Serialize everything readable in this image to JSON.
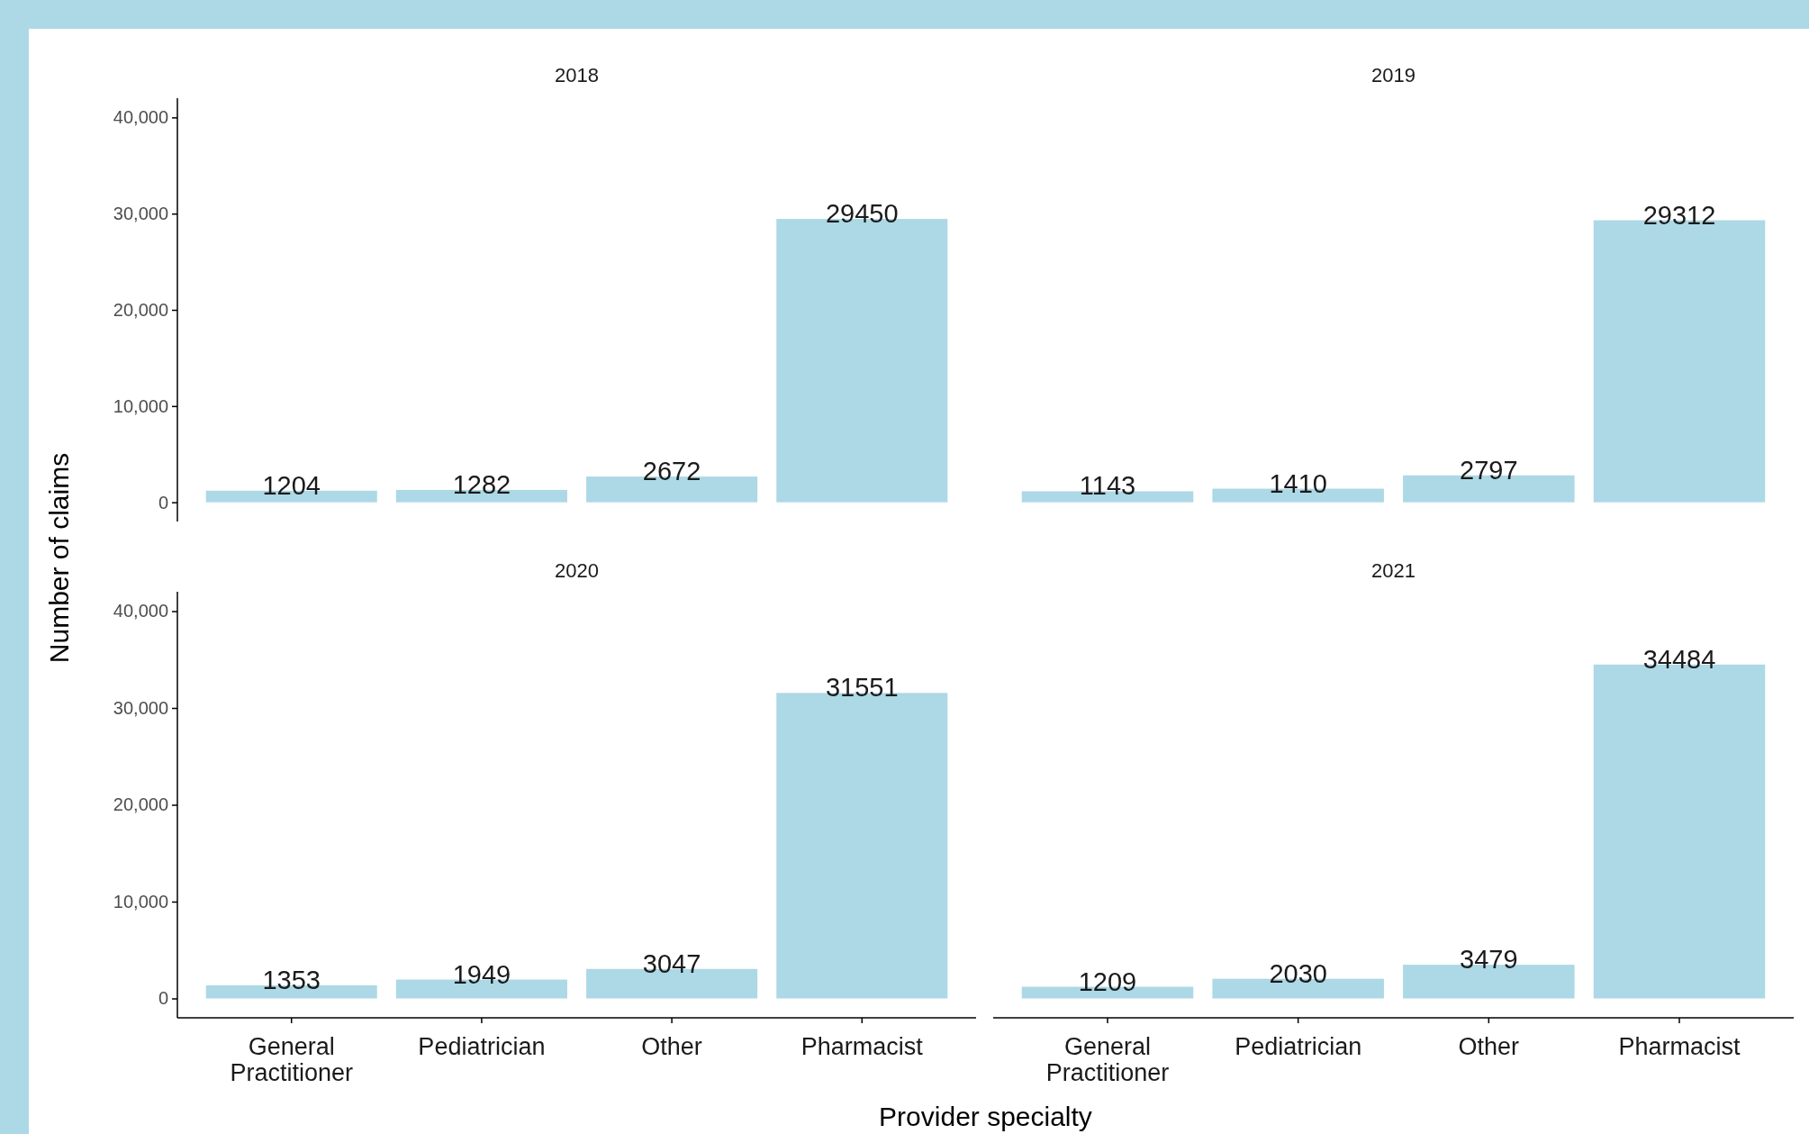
{
  "chart_data": [
    {
      "type": "bar",
      "title": "2018",
      "ylabel": "Number of claims",
      "categories": [
        null,
        null,
        null,
        null
      ],
      "values": [
        1204,
        1282,
        2672,
        29450
      ],
      "color": "#add8e6",
      "ylim": [
        -2000,
        42000
      ],
      "yticks": [
        0,
        {
          "value": 10000,
          "label": "10,000"
        },
        {
          "value": 20000,
          "label": "20,000"
        },
        {
          "value": 30000,
          "label": "30,000"
        },
        {
          "value": 40000,
          "label": "40,000"
        }
      ],
      "data_labels": true,
      "tick_labels": "y"
    },
    {
      "type": "bar",
      "title": "2019",
      "categories": [
        null,
        null,
        null,
        null
      ],
      "values": [
        1143,
        1410,
        2797,
        29312
      ],
      "color": "#add8e6",
      "data_labels": true,
      "tick_labels": false
    },
    {
      "type": "bar",
      "title": "2020",
      "xlabel": "Provider specialty",
      "categories": [
        "General Practitioner",
        "Pediatrician",
        "Other",
        "Pharmacist"
      ],
      "values": [
        1353,
        1949,
        3047,
        31551
      ],
      "color": "#add8e6",
      "ylim": [
        -2000,
        42000
      ],
      "yticks": [
        0,
        {
          "value": 10000,
          "label": "10,000"
        },
        {
          "value": 20000,
          "label": "20,000"
        },
        {
          "value": 30000,
          "label": "30,000"
        },
        {
          "value": 40000,
          "label": "40,000"
        }
      ],
      "data_labels": true
    },
    {
      "type": "bar",
      "title": "2021",
      "categories": [
        "General Practitioner",
        "Pediatrician",
        "Other",
        "Pharmacist"
      ],
      "values": [
        1209,
        2030,
        3479,
        34484
      ],
      "color": "#add8e6",
      "data_labels": true,
      "tick_labels": "x"
    }
  ]
}
